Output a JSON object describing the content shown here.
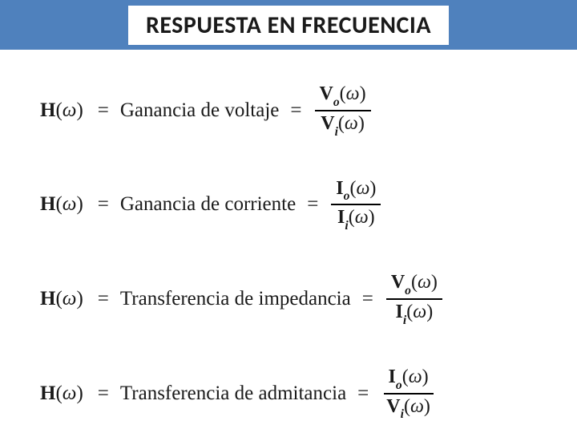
{
  "header": {
    "title": "RESPUESTA EN FRECUENCIA",
    "bar_color": "#4f81bd",
    "title_bg": "#ffffff",
    "title_fontsize": 30,
    "title_font": "Calibri"
  },
  "equations": [
    {
      "lhs_symbol": "H",
      "lhs_arg": "ω",
      "label": "Ganancia de voltaje",
      "num_symbol": "V",
      "num_sub": "o",
      "num_arg": "ω",
      "den_symbol": "V",
      "den_sub": "i",
      "den_arg": "ω"
    },
    {
      "lhs_symbol": "H",
      "lhs_arg": "ω",
      "label": "Ganancia de corriente",
      "num_symbol": "I",
      "num_sub": "o",
      "num_arg": "ω",
      "den_symbol": "I",
      "den_sub": "i",
      "den_arg": "ω"
    },
    {
      "lhs_symbol": "H",
      "lhs_arg": "ω",
      "label": "Transferencia de impedancia",
      "num_symbol": "V",
      "num_sub": "o",
      "num_arg": "ω",
      "den_symbol": "I",
      "den_sub": "i",
      "den_arg": "ω"
    },
    {
      "lhs_symbol": "H",
      "lhs_arg": "ω",
      "label": "Transferencia de admitancia",
      "num_symbol": "I",
      "num_sub": "o",
      "num_arg": "ω",
      "den_symbol": "V",
      "den_sub": "i",
      "den_arg": "ω"
    }
  ],
  "style": {
    "body_font": "Times New Roman",
    "body_fontsize": 25,
    "text_color": "#1a1a1a",
    "background": "#ffffff",
    "row_spacing": 46
  }
}
